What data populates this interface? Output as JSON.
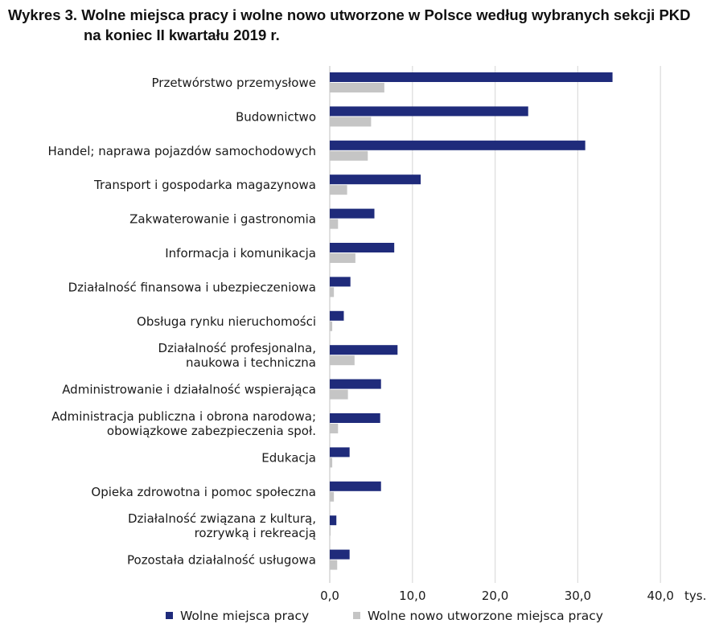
{
  "title_line1": "Wykres 3. Wolne miejsca pracy i wolne nowo utworzone w Polsce według wybranych sekcji PKD",
  "title_line2": "na koniec II kwartału 2019 r.",
  "chart_data": {
    "type": "bar",
    "orientation": "horizontal",
    "title": "Wykres 3. Wolne miejsca pracy i wolne nowo utworzone w Polsce według wybranych sekcji PKD na koniec II kwartału 2019 r.",
    "categories": [
      [
        "Przetwórstwo przemysłowe"
      ],
      [
        "Budownictwo"
      ],
      [
        "Handel; naprawa pojazdów samochodowych"
      ],
      [
        "Transport i gospodarka magazynowa"
      ],
      [
        "Zakwaterowanie i gastronomia"
      ],
      [
        "Informacja i komunikacja"
      ],
      [
        "Działalność finansowa i ubezpieczeniowa"
      ],
      [
        "Obsługa rynku nieruchomości"
      ],
      [
        "Działalność profesjonalna,",
        "naukowa i techniczna"
      ],
      [
        "Administrowanie i działalność wspierająca"
      ],
      [
        "Administracja publiczna i obrona narodowa;",
        "obowiązkowe zabezpieczenia społ."
      ],
      [
        "Edukacja"
      ],
      [
        "Opieka zdrowotna i pomoc społeczna"
      ],
      [
        "Działalność związana z kulturą,",
        "rozrywką i rekreacją"
      ],
      [
        "Pozostała działalność usługowa"
      ]
    ],
    "series": [
      {
        "name": "Wolne miejsca pracy",
        "color": "#1f2b7b",
        "values": [
          34.2,
          24.0,
          30.9,
          11.0,
          5.4,
          7.8,
          2.5,
          1.7,
          8.2,
          6.2,
          6.1,
          2.4,
          6.2,
          0.8,
          2.4
        ]
      },
      {
        "name": "Wolne nowo utworzone miejsca pracy",
        "color": "#c5c5c5",
        "values": [
          6.6,
          5.0,
          4.6,
          2.1,
          1.0,
          3.1,
          0.5,
          0.3,
          3.0,
          2.2,
          1.0,
          0.3,
          0.5,
          0.1,
          0.9
        ]
      }
    ],
    "x_ticks": [
      "0,0",
      "10,0",
      "20,0",
      "30,0",
      "40,0"
    ],
    "x_tick_values": [
      0,
      10,
      20,
      30,
      40
    ],
    "xlim": [
      0,
      40
    ],
    "unit_label": "tys.",
    "grid": "vertical",
    "legend": "bottom"
  }
}
